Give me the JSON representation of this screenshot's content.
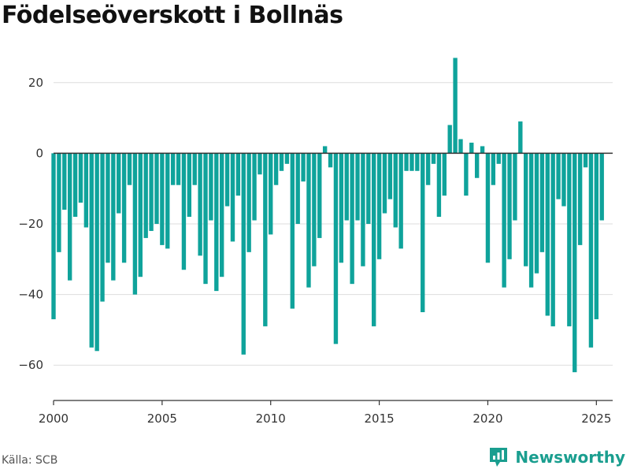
{
  "chart_data": {
    "type": "bar",
    "title": "Födelseöverskott i Bollnäs",
    "xlabel": "",
    "ylabel": "",
    "xlim": [
      2000,
      2025.75
    ],
    "ylim": [
      -70,
      30
    ],
    "x_ticks": [
      "2000",
      "2005",
      "2010",
      "2015",
      "2020",
      "2025"
    ],
    "y_ticks": [
      "20",
      "0",
      "−20",
      "−40",
      "−60"
    ],
    "bar_color": "#0fa39b",
    "start_quarter": "2000 Q1",
    "values": [
      -47,
      -28,
      -16,
      -36,
      -18,
      -14,
      -21,
      -55,
      -56,
      -42,
      -31,
      -36,
      -17,
      -31,
      -9,
      -40,
      -35,
      -24,
      -22,
      -20,
      -26,
      -27,
      -9,
      -9,
      -33,
      -18,
      -9,
      -29,
      -37,
      -19,
      -39,
      -35,
      -15,
      -25,
      -12,
      -57,
      -28,
      -19,
      -6,
      -49,
      -23,
      -9,
      -5,
      -3,
      -44,
      -20,
      -8,
      -38,
      -32,
      -24,
      2,
      -4,
      -54,
      -31,
      -19,
      -37,
      -19,
      -32,
      -20,
      -49,
      -30,
      -17,
      -13,
      -21,
      -27,
      -5,
      -5,
      -5,
      -45,
      -9,
      -3,
      -18,
      -12,
      8,
      27,
      4,
      -12,
      3,
      -7,
      2,
      -31,
      -9,
      -3,
      -38,
      -30,
      -19,
      9,
      -32,
      -38,
      -34,
      -28,
      -46,
      -49,
      -13,
      -15,
      -49,
      -62,
      -26,
      -4,
      -55,
      -47,
      -19
    ]
  },
  "footer": {
    "source": "Källa: SCB",
    "brand": "Newsworthy"
  }
}
